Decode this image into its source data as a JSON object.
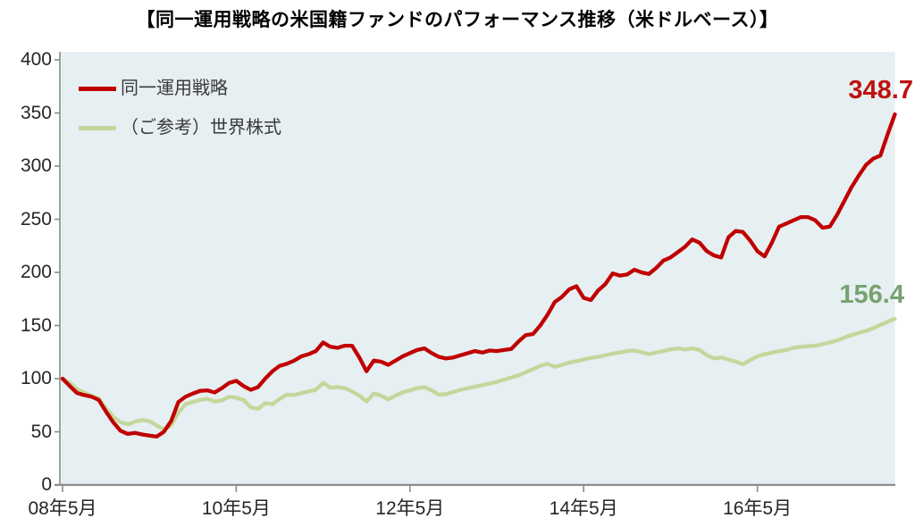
{
  "title": "【同一運用戦略の米国籍ファンドのパフォーマンス推移（米ドルベース）】",
  "colors": {
    "plot_background": "#e6eff1",
    "axis": "#8c8c8c",
    "main_series": "#c00000",
    "reference_series": "#c4d79b",
    "main_end_label": "#bd1210",
    "reference_end_label": "#77a26f",
    "tick_text": "#262626",
    "legend_text": "#3a3a3a"
  },
  "chart_data": {
    "type": "line",
    "title": "【同一運用戦略の米国籍ファンドのパフォーマンス推移（米ドルベース）】",
    "x_unit": "months since 2008-05 (monthly points)",
    "x_tick_months": [
      0,
      24,
      48,
      72,
      96
    ],
    "x_tick_labels": [
      "08年5月",
      "10年5月",
      "12年5月",
      "14年5月",
      "16年5月"
    ],
    "ylim": [
      0,
      400
    ],
    "y_ticks": [
      400,
      350,
      300,
      250,
      200,
      150,
      100,
      50,
      0
    ],
    "y_tick_labels": [
      "400",
      "350",
      "300",
      "250",
      "200",
      "150",
      "100",
      "50",
      "0"
    ],
    "grid": false,
    "legend_position": "top-left-inside",
    "series": [
      {
        "name": "同一運用戦略",
        "color": "#c00000",
        "end_label": "348.7",
        "end_label_color": "#bd1210",
        "start_value": 100,
        "values": [
          100,
          93,
          86.5,
          84.5,
          83,
          80,
          69,
          59,
          51,
          48,
          49,
          47.5,
          46.5,
          45.5,
          50,
          60,
          78,
          83,
          86,
          88.5,
          89,
          87,
          91,
          96,
          98,
          93,
          89.5,
          92,
          100,
          107,
          112,
          114,
          117,
          121,
          123,
          126,
          134,
          130,
          129,
          131,
          131,
          120,
          107,
          117,
          116,
          113,
          117,
          121,
          124,
          127,
          128.5,
          124,
          120.5,
          119,
          120,
          122,
          124,
          126,
          124.5,
          126.5,
          126,
          127,
          128,
          135,
          141,
          142,
          150,
          160,
          172,
          177,
          184,
          187,
          176,
          174,
          183,
          189,
          199,
          197,
          198,
          202.5,
          200,
          198.5,
          204,
          211,
          214,
          219,
          224,
          231,
          228,
          220,
          216,
          214,
          233,
          239,
          238,
          230,
          220,
          215,
          228,
          243,
          246,
          249,
          252,
          252,
          249,
          242,
          243,
          254,
          267,
          280,
          291,
          301,
          307,
          310,
          330,
          348.7
        ]
      },
      {
        "name": "（ご参考）世界株式",
        "color": "#c4d79b",
        "end_label": "156.4",
        "end_label_color": "#77a26f",
        "start_value": 100,
        "values": [
          100,
          96,
          90,
          87,
          84,
          81.5,
          72,
          64,
          59,
          57,
          59.5,
          61,
          60,
          56,
          52,
          56,
          68,
          76,
          78,
          80,
          81,
          78.5,
          79.5,
          83,
          82,
          80,
          73,
          71.5,
          77,
          76,
          81,
          85,
          84.5,
          86.5,
          88,
          89.5,
          96,
          91.5,
          92,
          91,
          88,
          84,
          78.5,
          86,
          84,
          80.5,
          84,
          87,
          89,
          91,
          92,
          89,
          85,
          85.5,
          87.5,
          89.5,
          91,
          92.5,
          94,
          95.5,
          97,
          99,
          101,
          103,
          106,
          109,
          112,
          114,
          111,
          113,
          115,
          116.5,
          118,
          119.5,
          120.5,
          122,
          123.5,
          124.5,
          126,
          126.5,
          125,
          123,
          124.5,
          126,
          127.5,
          128.5,
          127.5,
          128.5,
          127,
          122,
          119,
          120,
          118,
          116,
          113.5,
          117.5,
          121,
          123,
          124.5,
          126,
          127,
          129,
          130,
          130.5,
          131,
          132.5,
          134,
          136,
          138.5,
          141,
          143,
          145,
          147.5,
          150.5,
          153.5,
          156.4
        ]
      }
    ]
  }
}
